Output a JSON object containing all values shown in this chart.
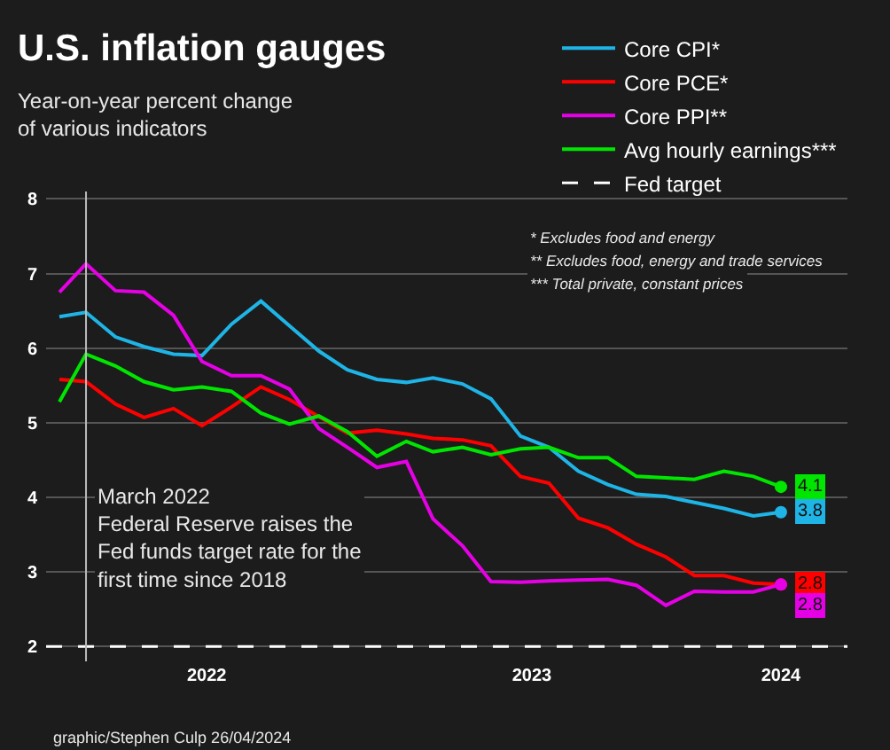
{
  "chart_data": {
    "type": "line",
    "title": "U.S. inflation gauges",
    "subtitle": "Year-on-year percent change\nof various indicators",
    "x": [
      "2022-02",
      "2022-03",
      "2022-04",
      "2022-05",
      "2022-06",
      "2022-07",
      "2022-08",
      "2022-09",
      "2022-10",
      "2022-11",
      "2022-12",
      "2023-01",
      "2023-02",
      "2023-03",
      "2023-04",
      "2023-05",
      "2023-06",
      "2023-07",
      "2023-08",
      "2023-09",
      "2023-10",
      "2023-11",
      "2023-12",
      "2024-01",
      "2024-02",
      "2024-03"
    ],
    "series": [
      {
        "name": "Core CPI*",
        "color": "#1fb4e6",
        "values": [
          6.42,
          6.48,
          6.15,
          6.02,
          5.92,
          5.9,
          6.32,
          6.63,
          6.3,
          5.96,
          5.71,
          5.58,
          5.54,
          5.6,
          5.52,
          5.32,
          4.82,
          4.67,
          4.35,
          4.17,
          4.04,
          4.01,
          3.93,
          3.85,
          3.75,
          3.8
        ],
        "value_labels": [
          null,
          null,
          null,
          null,
          null,
          null,
          null,
          null,
          null,
          null,
          null,
          null,
          null,
          null,
          null,
          null,
          null,
          null,
          null,
          null,
          null,
          null,
          null,
          null,
          null,
          "3.8"
        ]
      },
      {
        "name": "Core PCE*",
        "color": "#ff0000",
        "values": [
          5.58,
          5.55,
          5.25,
          5.07,
          5.19,
          4.96,
          5.21,
          5.48,
          5.31,
          5.08,
          4.86,
          4.9,
          4.85,
          4.79,
          4.77,
          4.69,
          4.28,
          4.19,
          3.72,
          3.59,
          3.37,
          3.2,
          2.95,
          2.95,
          2.85,
          2.83
        ],
        "value_labels": [
          null,
          null,
          null,
          null,
          null,
          null,
          null,
          null,
          null,
          null,
          null,
          null,
          null,
          null,
          null,
          null,
          null,
          null,
          null,
          null,
          null,
          null,
          null,
          null,
          null,
          "2.8"
        ]
      },
      {
        "name": "Core PPI**",
        "color": "#e600e6",
        "values": [
          6.75,
          7.13,
          6.77,
          6.75,
          6.44,
          5.82,
          5.63,
          5.63,
          5.45,
          4.92,
          4.67,
          4.4,
          4.48,
          3.71,
          3.35,
          2.87,
          2.86,
          2.88,
          2.89,
          2.9,
          2.82,
          2.55,
          2.74,
          2.73,
          2.73,
          2.83
        ],
        "value_labels": [
          null,
          null,
          null,
          null,
          null,
          null,
          null,
          null,
          null,
          null,
          null,
          null,
          null,
          null,
          null,
          null,
          null,
          null,
          null,
          null,
          null,
          null,
          null,
          null,
          null,
          "2.8"
        ]
      },
      {
        "name": "Avg hourly earnings***",
        "color": "#00e600",
        "values": [
          5.28,
          5.92,
          5.76,
          5.55,
          5.44,
          5.48,
          5.42,
          5.13,
          4.98,
          5.09,
          4.88,
          4.55,
          4.75,
          4.61,
          4.67,
          4.57,
          4.65,
          4.67,
          4.53,
          4.53,
          4.28,
          4.26,
          4.24,
          4.35,
          4.28,
          4.14
        ],
        "value_labels": [
          null,
          null,
          null,
          null,
          null,
          null,
          null,
          null,
          null,
          null,
          null,
          null,
          null,
          null,
          null,
          null,
          null,
          null,
          null,
          null,
          null,
          null,
          null,
          null,
          null,
          "4.1"
        ]
      }
    ],
    "ref_lines": [
      {
        "axis": "y",
        "value": 2,
        "label": "Fed target",
        "color": "#ffffff",
        "line_style": "dashed"
      },
      {
        "axis": "x",
        "value": "2022-03",
        "label": "March 2022\nFederal Reserve raises the\nFed funds target rate for the\nfirst time since 2018",
        "color": "#bbbbbb",
        "line_style": "solid"
      }
    ],
    "annotations": [
      "* Excludes food and energy",
      "** Excludes food, energy and trade services",
      "*** Total private, constant prices",
      "graphic/Stephen Culp 26/04/2024"
    ],
    "xlim": [
      "2022-01-18",
      "2024-05-10"
    ],
    "xticks": [
      {
        "value": "2022-07-06",
        "label": "2022"
      },
      {
        "value": "2023-06-13",
        "label": "2023"
      },
      {
        "value": "2024-03-01",
        "label": "2024"
      }
    ],
    "ylim": [
      1.8,
      8.1
    ],
    "yticks": [
      2,
      3,
      4,
      5,
      6,
      7,
      8
    ],
    "grid": "y",
    "legend": "top right",
    "line_style": "solid"
  }
}
